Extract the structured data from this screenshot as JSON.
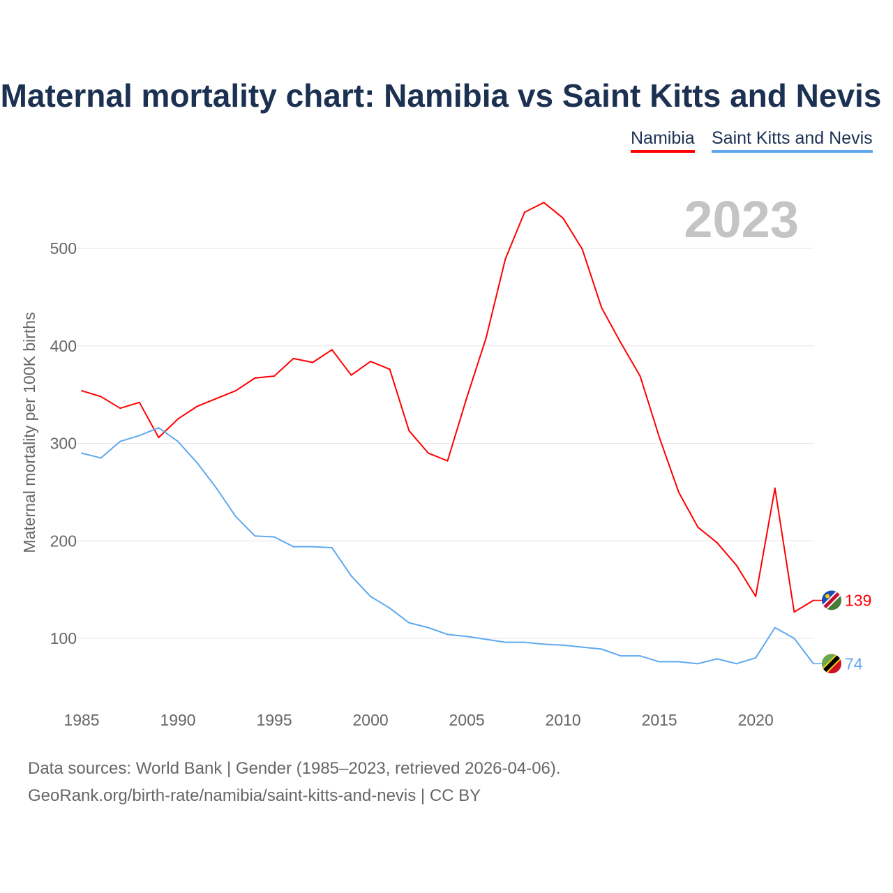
{
  "title": "Maternal mortality chart: Namibia vs Saint Kitts and Nevis",
  "source_line1": "Data sources: World Bank | Gender (1985–2023, retrieved 2026-04-06).",
  "source_line2": "GeoRank.org/birth-rate/namibia/saint-kitts-and-nevis | CC BY",
  "chart_data": {
    "type": "line",
    "title": "Maternal mortality chart: Namibia vs Saint Kitts and Nevis",
    "year_label": "2023",
    "xlabel": "",
    "ylabel": "Maternal mortality per 100K births",
    "xlim": [
      1985,
      2023
    ],
    "ylim": [
      40,
      570
    ],
    "xticks": [
      1985,
      1990,
      1995,
      2000,
      2005,
      2010,
      2015,
      2020
    ],
    "yticks": [
      100,
      200,
      300,
      400,
      500
    ],
    "grid": true,
    "legend": "top-right",
    "x": [
      1985,
      1986,
      1987,
      1988,
      1989,
      1990,
      1991,
      1992,
      1993,
      1994,
      1995,
      1996,
      1997,
      1998,
      1999,
      2000,
      2001,
      2002,
      2003,
      2004,
      2005,
      2006,
      2007,
      2008,
      2009,
      2010,
      2011,
      2012,
      2013,
      2014,
      2015,
      2016,
      2017,
      2018,
      2019,
      2020,
      2021,
      2022,
      2023
    ],
    "series": [
      {
        "name": "Namibia",
        "color": "#ff0000",
        "end_label": "139",
        "values": [
          354,
          348,
          336,
          342,
          306,
          325,
          338,
          346,
          354,
          367,
          369,
          387,
          383,
          396,
          370,
          384,
          376,
          313,
          290,
          282,
          347,
          408,
          489,
          537,
          547,
          531,
          499,
          439,
          403,
          369,
          306,
          250,
          214,
          198,
          175,
          143,
          254,
          127,
          139
        ]
      },
      {
        "name": "Saint Kitts and Nevis",
        "color": "#5fa8f0",
        "end_label": "74",
        "values": [
          290,
          285,
          302,
          308,
          316,
          302,
          280,
          254,
          225,
          205,
          204,
          194,
          194,
          193,
          164,
          143,
          131,
          116,
          111,
          104,
          102,
          99,
          96,
          96,
          94,
          93,
          91,
          89,
          82,
          82,
          76,
          76,
          74,
          79,
          74,
          80,
          111,
          100,
          74
        ]
      }
    ]
  }
}
